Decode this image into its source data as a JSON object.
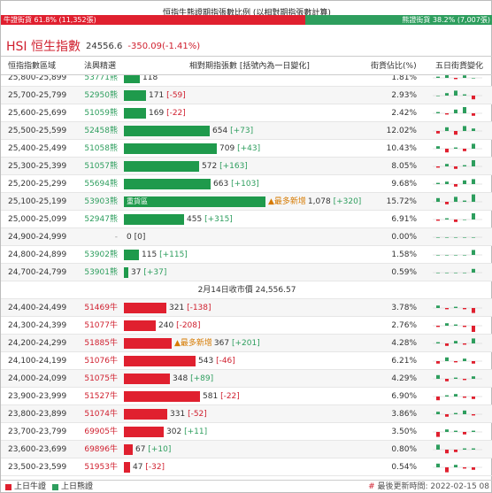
{
  "title": "恒指牛熊證期指張數比例 (以相對期指張數計算)",
  "ratio": {
    "bull_label": "牛證街貨 61.8% (11,352張)",
    "bear_label": "熊證街貨 38.2% (7,007張)",
    "bull_fraction": 0.618,
    "colors": {
      "bull": "#e0202f",
      "bear": "#2e9e5e"
    }
  },
  "index": {
    "name": "HSI 恒生指數",
    "price": "24556.6",
    "change": "-350.09(-1.41%)"
  },
  "headers": {
    "zone": "恒指指數區域",
    "code": "法興精選",
    "contracts": "相對期指張數 [括號內為一日變化]",
    "pct": "街貨佔比(%)",
    "trend": "五日街貨變化"
  },
  "bear_rows": [
    {
      "zone": "25,800-25,899",
      "code": "53771熊",
      "count": 118,
      "value": "118",
      "delta": "",
      "pct": "1.81%",
      "trend": [
        1,
        3,
        -1,
        2,
        0
      ]
    },
    {
      "zone": "25,700-25,799",
      "code": "52950熊",
      "count": 171,
      "value": "171",
      "delta": "[-59]",
      "pct": "2.93%",
      "trend": [
        0,
        2,
        4,
        1,
        -3
      ]
    },
    {
      "zone": "25,600-25,699",
      "code": "51059熊",
      "count": 169,
      "value": "169",
      "delta": "[-22]",
      "pct": "2.42%",
      "trend": [
        1,
        -1,
        3,
        5,
        -2
      ]
    },
    {
      "zone": "25,500-25,599",
      "code": "52458熊",
      "count": 654,
      "value": "654",
      "delta": "[+73]",
      "pct": "12.02%",
      "trend": [
        -2,
        3,
        -3,
        4,
        2
      ]
    },
    {
      "zone": "25,400-25,499",
      "code": "51058熊",
      "count": 709,
      "value": "709",
      "delta": "[+43]",
      "pct": "10.43%",
      "trend": [
        2,
        -3,
        1,
        -2,
        4
      ]
    },
    {
      "zone": "25,300-25,399",
      "code": "51057熊",
      "count": 572,
      "value": "572",
      "delta": "[+163]",
      "pct": "8.05%",
      "trend": [
        -1,
        2,
        -2,
        1,
        5
      ]
    },
    {
      "zone": "25,200-25,299",
      "code": "55694熊",
      "count": 663,
      "value": "663",
      "delta": "[+103]",
      "pct": "9.68%",
      "trend": [
        1,
        2,
        -2,
        3,
        4
      ]
    },
    {
      "zone": "25,100-25,199",
      "code": "53903熊",
      "count": 1078,
      "value": "1,078",
      "delta": "[+320]",
      "pct": "15.72%",
      "trend": [
        3,
        -2,
        4,
        1,
        6
      ],
      "heavy": "重貨區",
      "tag": "▲最多新增"
    },
    {
      "zone": "25,000-25,099",
      "code": "52947熊",
      "count": 455,
      "value": "455",
      "delta": "[+315]",
      "pct": "6.91%",
      "trend": [
        -1,
        1,
        -2,
        0,
        5
      ]
    },
    {
      "zone": "24,900-24,999",
      "code": "-",
      "count": 0,
      "value": "0",
      "delta": "[0]",
      "pct": "0.00%",
      "trend": [
        0,
        0,
        0,
        0,
        0
      ]
    },
    {
      "zone": "24,800-24,899",
      "code": "53902熊",
      "count": 115,
      "value": "115",
      "delta": "[+115]",
      "pct": "1.58%",
      "trend": [
        0,
        0,
        0,
        0,
        4
      ]
    },
    {
      "zone": "24,700-24,799",
      "code": "53901熊",
      "count": 37,
      "value": "37",
      "delta": "[+37]",
      "pct": "0.59%",
      "trend": [
        0,
        0,
        0,
        0,
        3
      ]
    }
  ],
  "separator": "2月14日收市價 24,556.57",
  "bull_rows": [
    {
      "zone": "24,400-24,499",
      "code": "51469牛",
      "count": 321,
      "value": "321",
      "delta": "[-138]",
      "pct": "3.78%",
      "trend": [
        2,
        -1,
        1,
        -1,
        -4
      ]
    },
    {
      "zone": "24,300-24,399",
      "code": "51077牛",
      "count": 240,
      "value": "240",
      "delta": "[-208]",
      "pct": "2.76%",
      "trend": [
        -1,
        2,
        1,
        -1,
        -5
      ]
    },
    {
      "zone": "24,200-24,299",
      "code": "51885牛",
      "count": 367,
      "value": "367",
      "delta": "[+201]",
      "pct": "4.28%",
      "trend": [
        1,
        -2,
        2,
        -1,
        4
      ],
      "tag": "▲最多新增"
    },
    {
      "zone": "24,100-24,199",
      "code": "51076牛",
      "count": 543,
      "value": "543",
      "delta": "[-46]",
      "pct": "6.21%",
      "trend": [
        -2,
        3,
        -1,
        2,
        -2
      ]
    },
    {
      "zone": "24,000-24,099",
      "code": "51075牛",
      "count": 348,
      "value": "348",
      "delta": "[+89]",
      "pct": "4.29%",
      "trend": [
        3,
        -2,
        1,
        -1,
        2
      ]
    },
    {
      "zone": "23,900-23,999",
      "code": "51527牛",
      "count": 581,
      "value": "581",
      "delta": "[-22]",
      "pct": "6.90%",
      "trend": [
        -3,
        1,
        2,
        -1,
        -2
      ]
    },
    {
      "zone": "23,800-23,899",
      "code": "51074牛",
      "count": 331,
      "value": "331",
      "delta": "[-52]",
      "pct": "3.86%",
      "trend": [
        2,
        -2,
        1,
        3,
        -1
      ]
    },
    {
      "zone": "23,700-23,799",
      "code": "69905牛",
      "count": 302,
      "value": "302",
      "delta": "[+11]",
      "pct": "3.50%",
      "trend": [
        -4,
        2,
        1,
        -2,
        1
      ]
    },
    {
      "zone": "23,600-23,699",
      "code": "69896牛",
      "count": 67,
      "value": "67",
      "delta": "[+10]",
      "pct": "0.80%",
      "trend": [
        4,
        -3,
        -2,
        1,
        1
      ]
    },
    {
      "zone": "23,500-23,599",
      "code": "51953牛",
      "count": 47,
      "value": "47",
      "delta": "[-32]",
      "pct": "0.54%",
      "trend": [
        3,
        -4,
        2,
        -1,
        -2
      ]
    }
  ],
  "footer": {
    "legend_bull": "上日牛證",
    "legend_bear": "上日熊證",
    "updated": "最後更新時間: 2022-02-15 08",
    "hash": "#"
  }
}
